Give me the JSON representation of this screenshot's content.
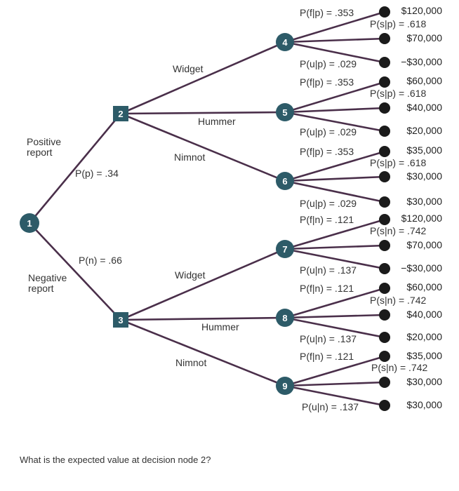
{
  "nodes": {
    "n1": "1",
    "n2": "2",
    "n3": "3",
    "n4": "4",
    "n5": "5",
    "n6": "6",
    "n7": "7",
    "n8": "8",
    "n9": "9"
  },
  "report_labels": {
    "positive": "Positive report",
    "negative": "Negative report",
    "p_positive": "P(p) = .34",
    "p_negative": "P(n) = .66"
  },
  "alternatives": {
    "widget": "Widget",
    "hummer": "Hummer",
    "nimnot": "Nimnot"
  },
  "probabilities": {
    "n4": {
      "f": "P(f|p) = .353",
      "s": "P(s|p) = .618",
      "u": "P(u|p) = .029"
    },
    "n5": {
      "f": "P(f|p) = .353",
      "s": "P(s|p) = .618",
      "u": "P(u|p) = .029"
    },
    "n6": {
      "f": "P(f|p) = .353",
      "s": "P(s|p) = .618",
      "u": "P(u|p) = .029"
    },
    "n7": {
      "f": "P(f|n) = .121",
      "s": "P(s|n) = .742",
      "u": "P(u|n) = .137"
    },
    "n8": {
      "f": "P(f|n) = .121",
      "s": "P(s|n) = .742",
      "u": "P(u|n) = .137"
    },
    "n9": {
      "f": "P(f|n) = .121",
      "s": "P(s|n) = .742",
      "u": "P(u|n) = .137"
    }
  },
  "payoffs": {
    "n4": [
      "$120,000",
      "$70,000",
      "−$30,000"
    ],
    "n5": [
      "$60,000",
      "$40,000",
      "$20,000"
    ],
    "n6": [
      "$35,000",
      "$30,000",
      "$30,000"
    ],
    "n7": [
      "$120,000",
      "$70,000",
      "−$30,000"
    ],
    "n8": [
      "$60,000",
      "$40,000",
      "$20,000"
    ],
    "n9": [
      "$35,000",
      "$30,000",
      "$30,000"
    ]
  },
  "question": "What is the expected value at decision node 2?"
}
